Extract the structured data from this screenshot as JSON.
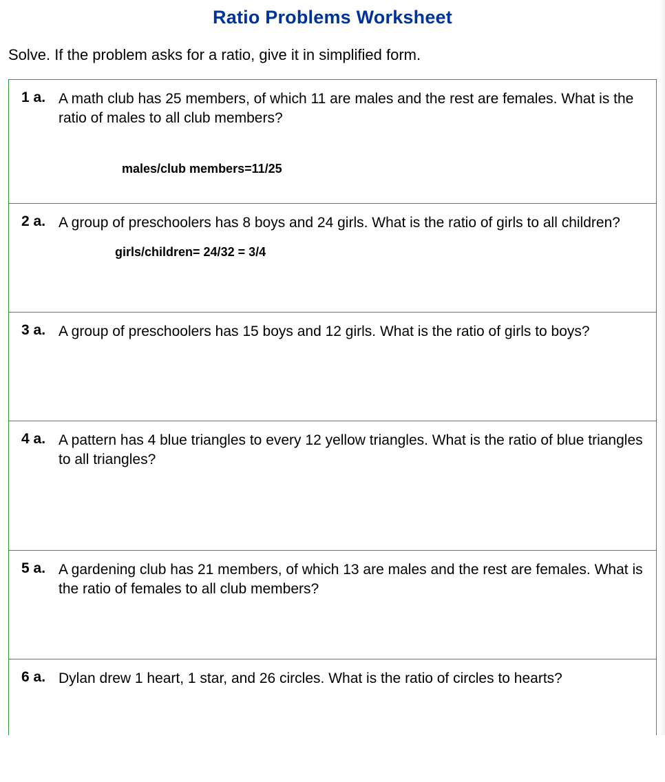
{
  "title": "Ratio Problems Worksheet",
  "title_color": "#003399",
  "instructions": "Solve. If the problem asks for a ratio, give it in simplified form.",
  "border_color": "#2e9a36",
  "background_color": "#ffffff",
  "text_color": "#000000",
  "title_fontsize": 27,
  "body_fontsize": 21,
  "answer_fontsize": 18,
  "problems": [
    {
      "number": "1 a.",
      "text": "A math club has 25 members, of which 11 are males and the rest are females. What is the ratio of males to all club members?",
      "answer": "males/club members=11/25"
    },
    {
      "number": "2 a.",
      "text": "A group of preschoolers has 8 boys and 24 girls. What is the ratio of girls to all children?",
      "answer": "girls/children= 24/32 = 3/4"
    },
    {
      "number": "3 a.",
      "text": "A group of preschoolers has 15 boys and 12 girls. What is the ratio of girls to boys?",
      "answer": ""
    },
    {
      "number": "4 a.",
      "text": "A pattern has 4 blue triangles to every 12 yellow triangles. What is the ratio of blue triangles to all triangles?",
      "answer": ""
    },
    {
      "number": "5 a.",
      "text": "A gardening club has 21 members, of which 13 are males and the rest are females. What is the ratio of females to all club members?",
      "answer": ""
    },
    {
      "number": "6 a.",
      "text": "Dylan drew 1 heart, 1 star, and 26 circles. What is the ratio of circles to hearts?",
      "answer": ""
    }
  ]
}
